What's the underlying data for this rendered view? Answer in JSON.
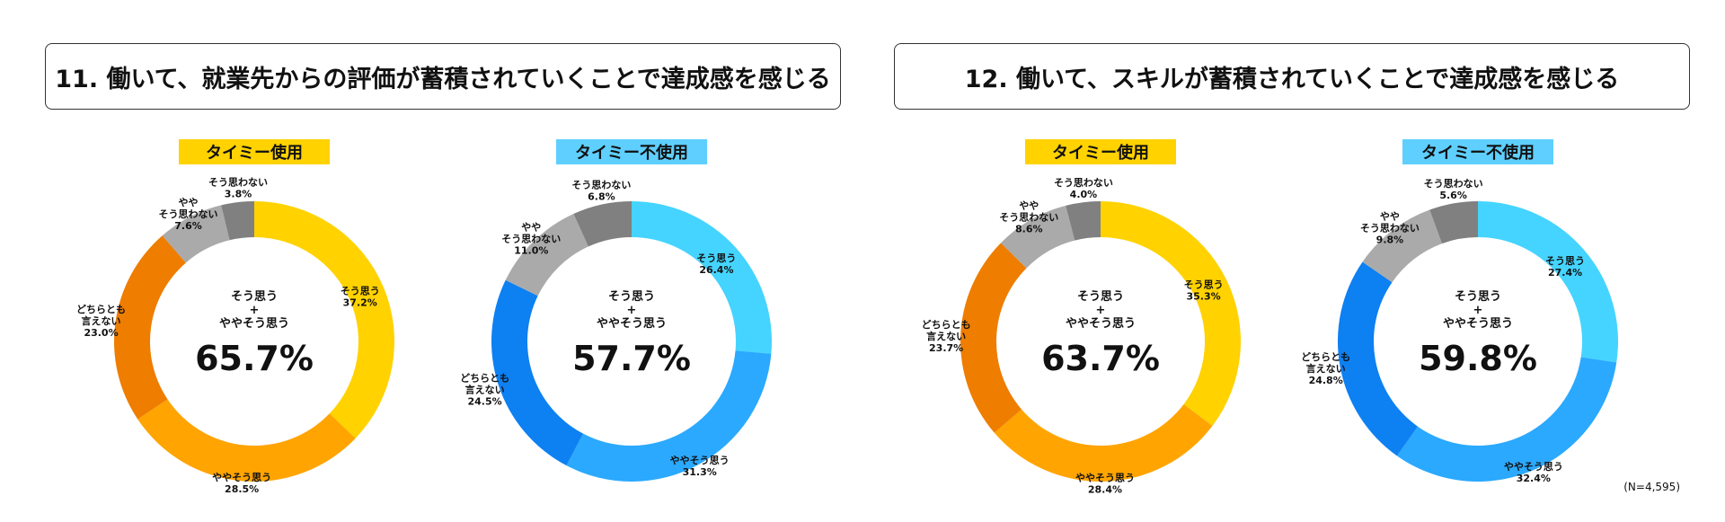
{
  "questions": [
    {
      "title": "11. 働いて、就業先からの評価が蓄積されていくことで達成感を感じる"
    },
    {
      "title": "12. 働いて、スキルが蓄積されていくことで達成感を感じる"
    }
  ],
  "note": "(N=4,595)",
  "chart_data": [
    {
      "type": "pie",
      "title": "タイミー使用",
      "center": {
        "line1": "そう思う",
        "line2": "+",
        "line3": "ややそう思う",
        "value": "65.7%"
      },
      "categories": [
        "そう思う",
        "ややそう思う",
        "どちらとも 言えない",
        "やや そう思わない",
        "そう思わない"
      ],
      "values": [
        37.2,
        28.5,
        23.0,
        7.6,
        3.8
      ],
      "labels": [
        "37.2%",
        "28.5%",
        "23.0%",
        "7.6%",
        "3.8%"
      ],
      "colors": [
        "#FFD200",
        "#FFA400",
        "#EE7D00",
        "#AAAAAA",
        "#808080"
      ]
    },
    {
      "type": "pie",
      "title": "タイミー不使用",
      "center": {
        "line1": "そう思う",
        "line2": "+",
        "line3": "ややそう思う",
        "value": "57.7%"
      },
      "categories": [
        "そう思う",
        "ややそう思う",
        "どちらとも 言えない",
        "やや そう思わない",
        "そう思わない"
      ],
      "values": [
        26.4,
        31.3,
        24.5,
        11.0,
        6.8
      ],
      "labels": [
        "26.4%",
        "31.3%",
        "24.5%",
        "11.0%",
        "6.8%"
      ],
      "colors": [
        "#45D4FF",
        "#2AA9FF",
        "#0D80F2",
        "#AAAAAA",
        "#808080"
      ]
    },
    {
      "type": "pie",
      "title": "タイミー使用",
      "center": {
        "line1": "そう思う",
        "line2": "+",
        "line3": "ややそう思う",
        "value": "63.7%"
      },
      "categories": [
        "そう思う",
        "ややそう思う",
        "どちらとも 言えない",
        "やや そう思わない",
        "そう思わない"
      ],
      "values": [
        35.3,
        28.4,
        23.7,
        8.6,
        4.0
      ],
      "labels": [
        "35.3%",
        "28.4%",
        "23.7%",
        "8.6%",
        "4.0%"
      ],
      "colors": [
        "#FFD200",
        "#FFA400",
        "#EE7D00",
        "#AAAAAA",
        "#808080"
      ]
    },
    {
      "type": "pie",
      "title": "タイミー不使用",
      "center": {
        "line1": "そう思う",
        "line2": "+",
        "line3": "ややそう思う",
        "value": "59.8%"
      },
      "categories": [
        "そう思う",
        "ややそう思う",
        "どちらとも 言えない",
        "やや そう思わない",
        "そう思わない"
      ],
      "values": [
        27.4,
        32.4,
        24.8,
        9.8,
        5.6
      ],
      "labels": [
        "27.4%",
        "32.4%",
        "24.8%",
        "9.8%",
        "5.6%"
      ],
      "colors": [
        "#45D4FF",
        "#2AA9FF",
        "#0D80F2",
        "#AAAAAA",
        "#808080"
      ]
    }
  ],
  "badge_colors": [
    "#FFD200",
    "#5ECFFF",
    "#FFD200",
    "#5ECFFF"
  ]
}
